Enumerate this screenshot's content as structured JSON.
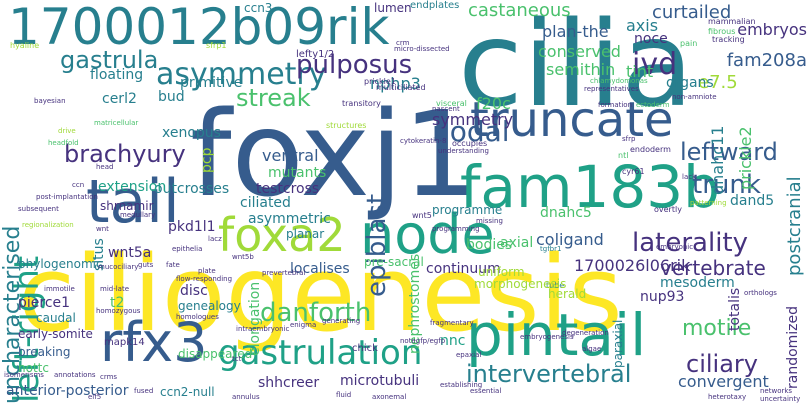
{
  "palette": {
    "purple": "#440154",
    "indigo": "#46327e",
    "blue": "#365c8d",
    "teal": "#277f8e",
    "green": "#1fa187",
    "lime": "#4ac16d",
    "yellowgreen": "#a0da39",
    "yellow": "#fde725",
    "background": "#ffffff"
  },
  "words": [
    {
      "text": "foxj1",
      "color": "#365c8d",
      "orientation": "horizontal"
    },
    {
      "text": "cilia",
      "color": "#277f8e",
      "orientation": "horizontal"
    },
    {
      "text": "ciliogenesis",
      "color": "#fde725",
      "orientation": "horizontal"
    },
    {
      "text": "1700012b09rik",
      "color": "#277f8e",
      "orientation": "horizontal"
    },
    {
      "text": "fam183b",
      "color": "#1fa187",
      "orientation": "horizontal"
    },
    {
      "text": "tail",
      "color": "#365c8d",
      "orientation": "horizontal"
    },
    {
      "text": "pintail",
      "color": "#1fa187",
      "orientation": "horizontal"
    },
    {
      "text": "node",
      "color": "#1fa187",
      "orientation": "horizontal"
    },
    {
      "text": "foxa2",
      "color": "#a0da39",
      "orientation": "horizontal"
    },
    {
      "text": "truncate",
      "color": "#365c8d",
      "orientation": "horizontal"
    },
    {
      "text": "rfx3",
      "color": "#365c8d",
      "orientation": "horizontal"
    },
    {
      "text": "gastrulation",
      "color": "#1fa187",
      "orientation": "horizontal"
    },
    {
      "text": "left-right",
      "color": "#1fa187",
      "orientation": "vertical"
    },
    {
      "text": "asymmetry",
      "color": "#277f8e",
      "orientation": "horizontal"
    },
    {
      "text": "nodal",
      "color": "#365c8d",
      "orientation": "horizontal"
    },
    {
      "text": "laterality",
      "color": "#46327e",
      "orientation": "horizontal"
    },
    {
      "text": "epiblast",
      "color": "#365c8d",
      "orientation": "vertical"
    },
    {
      "text": "pulposus",
      "color": "#46327e",
      "orientation": "horizontal"
    },
    {
      "text": "ivd",
      "color": "#46327e",
      "orientation": "horizontal"
    },
    {
      "text": "trunk",
      "color": "#365c8d",
      "orientation": "horizontal"
    },
    {
      "text": "leftward",
      "color": "#365c8d",
      "orientation": "horizontal"
    },
    {
      "text": "danforth",
      "color": "#4ac16d",
      "orientation": "horizontal"
    },
    {
      "text": "intervertebral",
      "color": "#277f8e",
      "orientation": "horizontal"
    },
    {
      "text": "gastrula",
      "color": "#277f8e",
      "orientation": "horizontal"
    },
    {
      "text": "brachyury",
      "color": "#46327e",
      "orientation": "horizontal"
    },
    {
      "text": "streak",
      "color": "#4ac16d",
      "orientation": "horizontal"
    },
    {
      "text": "ciliary",
      "color": "#46327e",
      "orientation": "horizontal"
    },
    {
      "text": "motile",
      "color": "#4ac16d",
      "orientation": "horizontal"
    },
    {
      "text": "vertebrate",
      "color": "#46327e",
      "orientation": "horizontal"
    },
    {
      "text": "uncharacterised",
      "color": "#277f8e",
      "orientation": "vertical"
    },
    {
      "text": "castaneous",
      "color": "#4ac16d",
      "orientation": "horizontal"
    },
    {
      "text": "curtailed",
      "color": "#365c8d",
      "orientation": "horizontal"
    },
    {
      "text": "embryos",
      "color": "#46327e",
      "orientation": "horizontal"
    },
    {
      "text": "fam208a",
      "color": "#365c8d",
      "orientation": "horizontal"
    },
    {
      "text": "e7.5",
      "color": "#a0da39",
      "orientation": "horizontal"
    },
    {
      "text": "dnahc11",
      "color": "#277f8e",
      "orientation": "vertical"
    },
    {
      "text": "prickle2",
      "color": "#4ac16d",
      "orientation": "vertical"
    },
    {
      "text": "postcranial",
      "color": "#277f8e",
      "orientation": "vertical"
    },
    {
      "text": "plan-the",
      "color": "#365c8d",
      "orientation": "horizontal"
    },
    {
      "text": "conserved",
      "color": "#4ac16d",
      "orientation": "horizontal"
    },
    {
      "text": "semithin",
      "color": "#4ac16d",
      "orientation": "horizontal"
    },
    {
      "text": "tint",
      "color": "#4ac16d",
      "orientation": "horizontal"
    },
    {
      "text": "organs",
      "color": "#277f8e",
      "orientation": "horizontal"
    },
    {
      "text": "noce",
      "color": "#46327e",
      "orientation": "horizontal"
    },
    {
      "text": "axis",
      "color": "#277f8e",
      "orientation": "horizontal"
    },
    {
      "text": "nphp3",
      "color": "#277f8e",
      "orientation": "horizontal"
    },
    {
      "text": "f20c",
      "color": "#4ac16d",
      "orientation": "horizontal"
    },
    {
      "text": "symmetry",
      "color": "#46327e",
      "orientation": "horizontal"
    },
    {
      "text": "dnahc5",
      "color": "#4ac16d",
      "orientation": "horizontal"
    },
    {
      "text": "dand5",
      "color": "#277f8e",
      "orientation": "horizontal"
    },
    {
      "text": "coligand",
      "color": "#365c8d",
      "orientation": "horizontal"
    },
    {
      "text": "bud",
      "color": "#277f8e",
      "orientation": "horizontal"
    },
    {
      "text": "floating",
      "color": "#277f8e",
      "orientation": "horizontal"
    },
    {
      "text": "primitive",
      "color": "#277f8e",
      "orientation": "horizontal"
    },
    {
      "text": "cerl2",
      "color": "#277f8e",
      "orientation": "horizontal"
    },
    {
      "text": "xenopus",
      "color": "#277f8e",
      "orientation": "horizontal"
    },
    {
      "text": "pcp",
      "color": "#a0da39",
      "orientation": "vertical"
    },
    {
      "text": "ventral",
      "color": "#365c8d",
      "orientation": "horizontal"
    },
    {
      "text": "mutants",
      "color": "#4ac16d",
      "orientation": "horizontal"
    },
    {
      "text": "testcross",
      "color": "#46327e",
      "orientation": "horizontal"
    },
    {
      "text": "outcrosses",
      "color": "#277f8e",
      "orientation": "horizontal"
    },
    {
      "text": "extension",
      "color": "#1fa187",
      "orientation": "horizontal"
    },
    {
      "text": "ciliated",
      "color": "#277f8e",
      "orientation": "horizontal"
    },
    {
      "text": "asymmetric",
      "color": "#277f8e",
      "orientation": "horizontal"
    },
    {
      "text": "planar",
      "color": "#277f8e",
      "orientation": "horizontal"
    },
    {
      "text": "shrnamir",
      "color": "#46327e",
      "orientation": "horizontal"
    },
    {
      "text": "situs",
      "color": "#277f8e",
      "orientation": "vertical"
    },
    {
      "text": "pkd1l1",
      "color": "#46327e",
      "orientation": "horizontal"
    },
    {
      "text": "wnt5a",
      "color": "#46327e",
      "orientation": "horizontal"
    },
    {
      "text": "nephrostomes",
      "color": "#4ac16d",
      "orientation": "vertical"
    },
    {
      "text": "bodies",
      "color": "#4ac16d",
      "orientation": "horizontal"
    },
    {
      "text": "axial",
      "color": "#4ac16d",
      "orientation": "horizontal"
    },
    {
      "text": "localises",
      "color": "#365c8d",
      "orientation": "horizontal"
    },
    {
      "text": "continuum",
      "color": "#46327e",
      "orientation": "horizontal"
    },
    {
      "text": "pre-sacral",
      "color": "#4ac16d",
      "orientation": "horizontal"
    },
    {
      "text": "uniform",
      "color": "#a0da39",
      "orientation": "horizontal"
    },
    {
      "text": "mesoderm",
      "color": "#277f8e",
      "orientation": "horizontal"
    },
    {
      "text": "1700026l06rik",
      "color": "#46327e",
      "orientation": "horizontal"
    },
    {
      "text": "nup93",
      "color": "#46327e",
      "orientation": "horizontal"
    },
    {
      "text": "totalis",
      "color": "#46327e",
      "orientation": "vertical"
    },
    {
      "text": "randomized",
      "color": "#46327e",
      "orientation": "vertical"
    },
    {
      "text": "phylogenomic",
      "color": "#277f8e",
      "orientation": "horizontal"
    },
    {
      "text": "pierce1",
      "color": "#46327e",
      "orientation": "horizontal"
    },
    {
      "text": "caudal",
      "color": "#277f8e",
      "orientation": "horizontal"
    },
    {
      "text": "t2",
      "color": "#4ac16d",
      "orientation": "horizontal"
    },
    {
      "text": "disc",
      "color": "#46327e",
      "orientation": "horizontal"
    },
    {
      "text": "genealogy",
      "color": "#277f8e",
      "orientation": "horizontal"
    },
    {
      "text": "elongation",
      "color": "#4ac16d",
      "orientation": "vertical"
    },
    {
      "text": "early-somite",
      "color": "#46327e",
      "orientation": "horizontal"
    },
    {
      "text": "breaking",
      "color": "#365c8d",
      "orientation": "horizontal"
    },
    {
      "text": "disappeared",
      "color": "#4ac16d",
      "orientation": "horizontal"
    },
    {
      "text": "nnc",
      "color": "#1fa187",
      "orientation": "horizontal"
    },
    {
      "text": "paraxial",
      "color": "#277f8e",
      "orientation": "vertical"
    },
    {
      "text": "convergent",
      "color": "#365c8d",
      "orientation": "horizontal"
    },
    {
      "text": "nottc",
      "color": "#4ac16d",
      "orientation": "horizontal"
    },
    {
      "text": "anterior-posterior",
      "color": "#365c8d",
      "orientation": "horizontal"
    },
    {
      "text": "shhcreer",
      "color": "#46327e",
      "orientation": "horizontal"
    },
    {
      "text": "microtubuli",
      "color": "#46327e",
      "orientation": "horizontal"
    },
    {
      "text": "ccn2-null",
      "color": "#277f8e",
      "orientation": "horizontal"
    },
    {
      "text": "ccn3",
      "color": "#277f8e",
      "orientation": "horizontal"
    },
    {
      "text": "lumen",
      "color": "#46327e",
      "orientation": "horizontal"
    },
    {
      "text": "endplates",
      "color": "#277f8e",
      "orientation": "horizontal"
    },
    {
      "text": "lefty1/2",
      "color": "#46327e",
      "orientation": "horizontal"
    },
    {
      "text": "herald",
      "color": "#a0da39",
      "orientation": "horizontal"
    },
    {
      "text": "mapk14",
      "color": "#46327e",
      "orientation": "horizontal"
    },
    {
      "text": "chick",
      "color": "#46327e",
      "orientation": "horizontal"
    },
    {
      "text": "programme",
      "color": "#277f8e",
      "orientation": "horizontal"
    },
    {
      "text": "hyaline",
      "color": "#a0da39",
      "orientation": "horizontal"
    },
    {
      "text": "sfrp1",
      "color": "#a0da39",
      "orientation": "horizontal"
    },
    {
      "text": "micro-dissected",
      "color": "#46327e",
      "orientation": "horizontal"
    },
    {
      "text": "mammalian",
      "color": "#46327e",
      "orientation": "horizontal"
    },
    {
      "text": "fibrous",
      "color": "#4ac16d",
      "orientation": "horizontal"
    },
    {
      "text": "tracking",
      "color": "#46327e",
      "orientation": "horizontal"
    },
    {
      "text": "pain",
      "color": "#4ac16d",
      "orientation": "horizontal"
    },
    {
      "text": "non-amniote",
      "color": "#46327e",
      "orientation": "horizontal"
    },
    {
      "text": "representatives",
      "color": "#46327e",
      "orientation": "horizontal"
    },
    {
      "text": "chlamydomonas",
      "color": "#4ac16d",
      "orientation": "horizontal"
    },
    {
      "text": "formation",
      "color": "#46327e",
      "orientation": "horizontal"
    },
    {
      "text": "multiciliated",
      "color": "#46327e",
      "orientation": "horizontal"
    },
    {
      "text": "visceral",
      "color": "#4ac16d",
      "orientation": "horizontal"
    },
    {
      "text": "prickle1",
      "color": "#46327e",
      "orientation": "horizontal"
    },
    {
      "text": "nascent",
      "color": "#46327e",
      "orientation": "horizontal"
    },
    {
      "text": "ectoderm",
      "color": "#4ac16d",
      "orientation": "horizontal"
    },
    {
      "text": "structures",
      "color": "#a0da39",
      "orientation": "horizontal"
    },
    {
      "text": "transitory",
      "color": "#46327e",
      "orientation": "horizontal"
    },
    {
      "text": "occupies",
      "color": "#46327e",
      "orientation": "horizontal"
    },
    {
      "text": "understanding",
      "color": "#46327e",
      "orientation": "horizontal"
    },
    {
      "text": "cytokeratin-8",
      "color": "#46327e",
      "orientation": "horizontal"
    },
    {
      "text": "sfrp",
      "color": "#46327e",
      "orientation": "horizontal"
    },
    {
      "text": "endoderm",
      "color": "#46327e",
      "orientation": "horizontal"
    },
    {
      "text": "ntl",
      "color": "#4ac16d",
      "orientation": "horizontal"
    },
    {
      "text": "cyr61",
      "color": "#46327e",
      "orientation": "horizontal"
    },
    {
      "text": "lack",
      "color": "#46327e",
      "orientation": "horizontal"
    },
    {
      "text": "patterning",
      "color": "#a0da39",
      "orientation": "horizontal"
    },
    {
      "text": "overtly",
      "color": "#46327e",
      "orientation": "horizontal"
    },
    {
      "text": "embryonic",
      "color": "#46327e",
      "orientation": "horizontal"
    },
    {
      "text": "tgfbr1",
      "color": "#277f8e",
      "orientation": "horizontal"
    },
    {
      "text": "orthologs",
      "color": "#46327e",
      "orientation": "horizontal"
    },
    {
      "text": "missing",
      "color": "#46327e",
      "orientation": "horizontal"
    },
    {
      "text": "programming",
      "color": "#46327e",
      "orientation": "horizontal"
    },
    {
      "text": "tube",
      "color": "#277f8e",
      "orientation": "horizontal"
    },
    {
      "text": "wnt5",
      "color": "#46327e",
      "orientation": "horizontal"
    },
    {
      "text": "wnt5b",
      "color": "#46327e",
      "orientation": "horizontal"
    },
    {
      "text": "prevertebral",
      "color": "#46327e",
      "orientation": "horizontal"
    },
    {
      "text": "medullary",
      "color": "#46327e",
      "orientation": "horizontal"
    },
    {
      "text": "lacz",
      "color": "#46327e",
      "orientation": "horizontal"
    },
    {
      "text": "head",
      "color": "#46327e",
      "orientation": "horizontal"
    },
    {
      "text": "ccn",
      "color": "#46327e",
      "orientation": "horizontal"
    },
    {
      "text": "wnt",
      "color": "#46327e",
      "orientation": "horizontal"
    },
    {
      "text": "crm",
      "color": "#46327e",
      "orientation": "horizontal"
    },
    {
      "text": "drive",
      "color": "#a0da39",
      "orientation": "horizontal"
    },
    {
      "text": "bayesian",
      "color": "#46327e",
      "orientation": "horizontal"
    },
    {
      "text": "matricellular",
      "color": "#4ac16d",
      "orientation": "horizontal"
    },
    {
      "text": "headfold",
      "color": "#4ac16d",
      "orientation": "horizontal"
    },
    {
      "text": "subsequent",
      "color": "#46327e",
      "orientation": "horizontal"
    },
    {
      "text": "post-implantation",
      "color": "#46327e",
      "orientation": "horizontal"
    },
    {
      "text": "regionalization",
      "color": "#a0da39",
      "orientation": "horizontal"
    },
    {
      "text": "mucociliary",
      "color": "#46327e",
      "orientation": "horizontal"
    },
    {
      "text": "guts",
      "color": "#46327e",
      "orientation": "horizontal"
    },
    {
      "text": "fate",
      "color": "#46327e",
      "orientation": "horizontal"
    },
    {
      "text": "immotile",
      "color": "#46327e",
      "orientation": "horizontal"
    },
    {
      "text": "mid-late",
      "color": "#46327e",
      "orientation": "horizontal"
    },
    {
      "text": "homozygous",
      "color": "#46327e",
      "orientation": "horizontal"
    },
    {
      "text": "homologues",
      "color": "#46327e",
      "orientation": "horizontal"
    },
    {
      "text": "epithelia",
      "color": "#46327e",
      "orientation": "horizontal"
    },
    {
      "text": "flow-responding",
      "color": "#46327e",
      "orientation": "horizontal"
    },
    {
      "text": "plate",
      "color": "#46327e",
      "orientation": "horizontal"
    },
    {
      "text": "intraembryonic",
      "color": "#46327e",
      "orientation": "horizontal"
    },
    {
      "text": "enigma",
      "color": "#46327e",
      "orientation": "horizontal"
    },
    {
      "text": "generating",
      "color": "#46327e",
      "orientation": "horizontal"
    },
    {
      "text": "notegfp/egfp",
      "color": "#46327e",
      "orientation": "horizontal"
    },
    {
      "text": "epaxial",
      "color": "#46327e",
      "orientation": "horizontal"
    },
    {
      "text": "fragmentary",
      "color": "#46327e",
      "orientation": "horizontal"
    },
    {
      "text": "degeneration",
      "color": "#46327e",
      "orientation": "horizontal"
    },
    {
      "text": "algae",
      "color": "#46327e",
      "orientation": "horizontal"
    },
    {
      "text": "establishing",
      "color": "#46327e",
      "orientation": "horizontal"
    },
    {
      "text": "essential",
      "color": "#46327e",
      "orientation": "horizontal"
    },
    {
      "text": "embryogenesis",
      "color": "#46327e",
      "orientation": "horizontal"
    },
    {
      "text": "networks",
      "color": "#46327e",
      "orientation": "horizontal"
    },
    {
      "text": "heterotaxy",
      "color": "#46327e",
      "orientation": "horizontal"
    },
    {
      "text": "uncertainty",
      "color": "#46327e",
      "orientation": "horizontal"
    },
    {
      "text": "crms",
      "color": "#46327e",
      "orientation": "horizontal"
    },
    {
      "text": "elf5",
      "color": "#46327e",
      "orientation": "horizontal"
    },
    {
      "text": "isomerisms",
      "color": "#46327e",
      "orientation": "horizontal"
    },
    {
      "text": "fused",
      "color": "#46327e",
      "orientation": "horizontal"
    },
    {
      "text": "tct",
      "color": "#46327e",
      "orientation": "horizontal"
    },
    {
      "text": "annulus",
      "color": "#46327e",
      "orientation": "horizontal"
    },
    {
      "text": "fluid",
      "color": "#46327e",
      "orientation": "horizontal"
    },
    {
      "text": "axonemal",
      "color": "#46327e",
      "orientation": "horizontal"
    },
    {
      "text": "annotations",
      "color": "#46327e",
      "orientation": "horizontal"
    },
    {
      "text": "morphogenesis",
      "color": "#a0da39",
      "orientation": "horizontal"
    }
  ]
}
